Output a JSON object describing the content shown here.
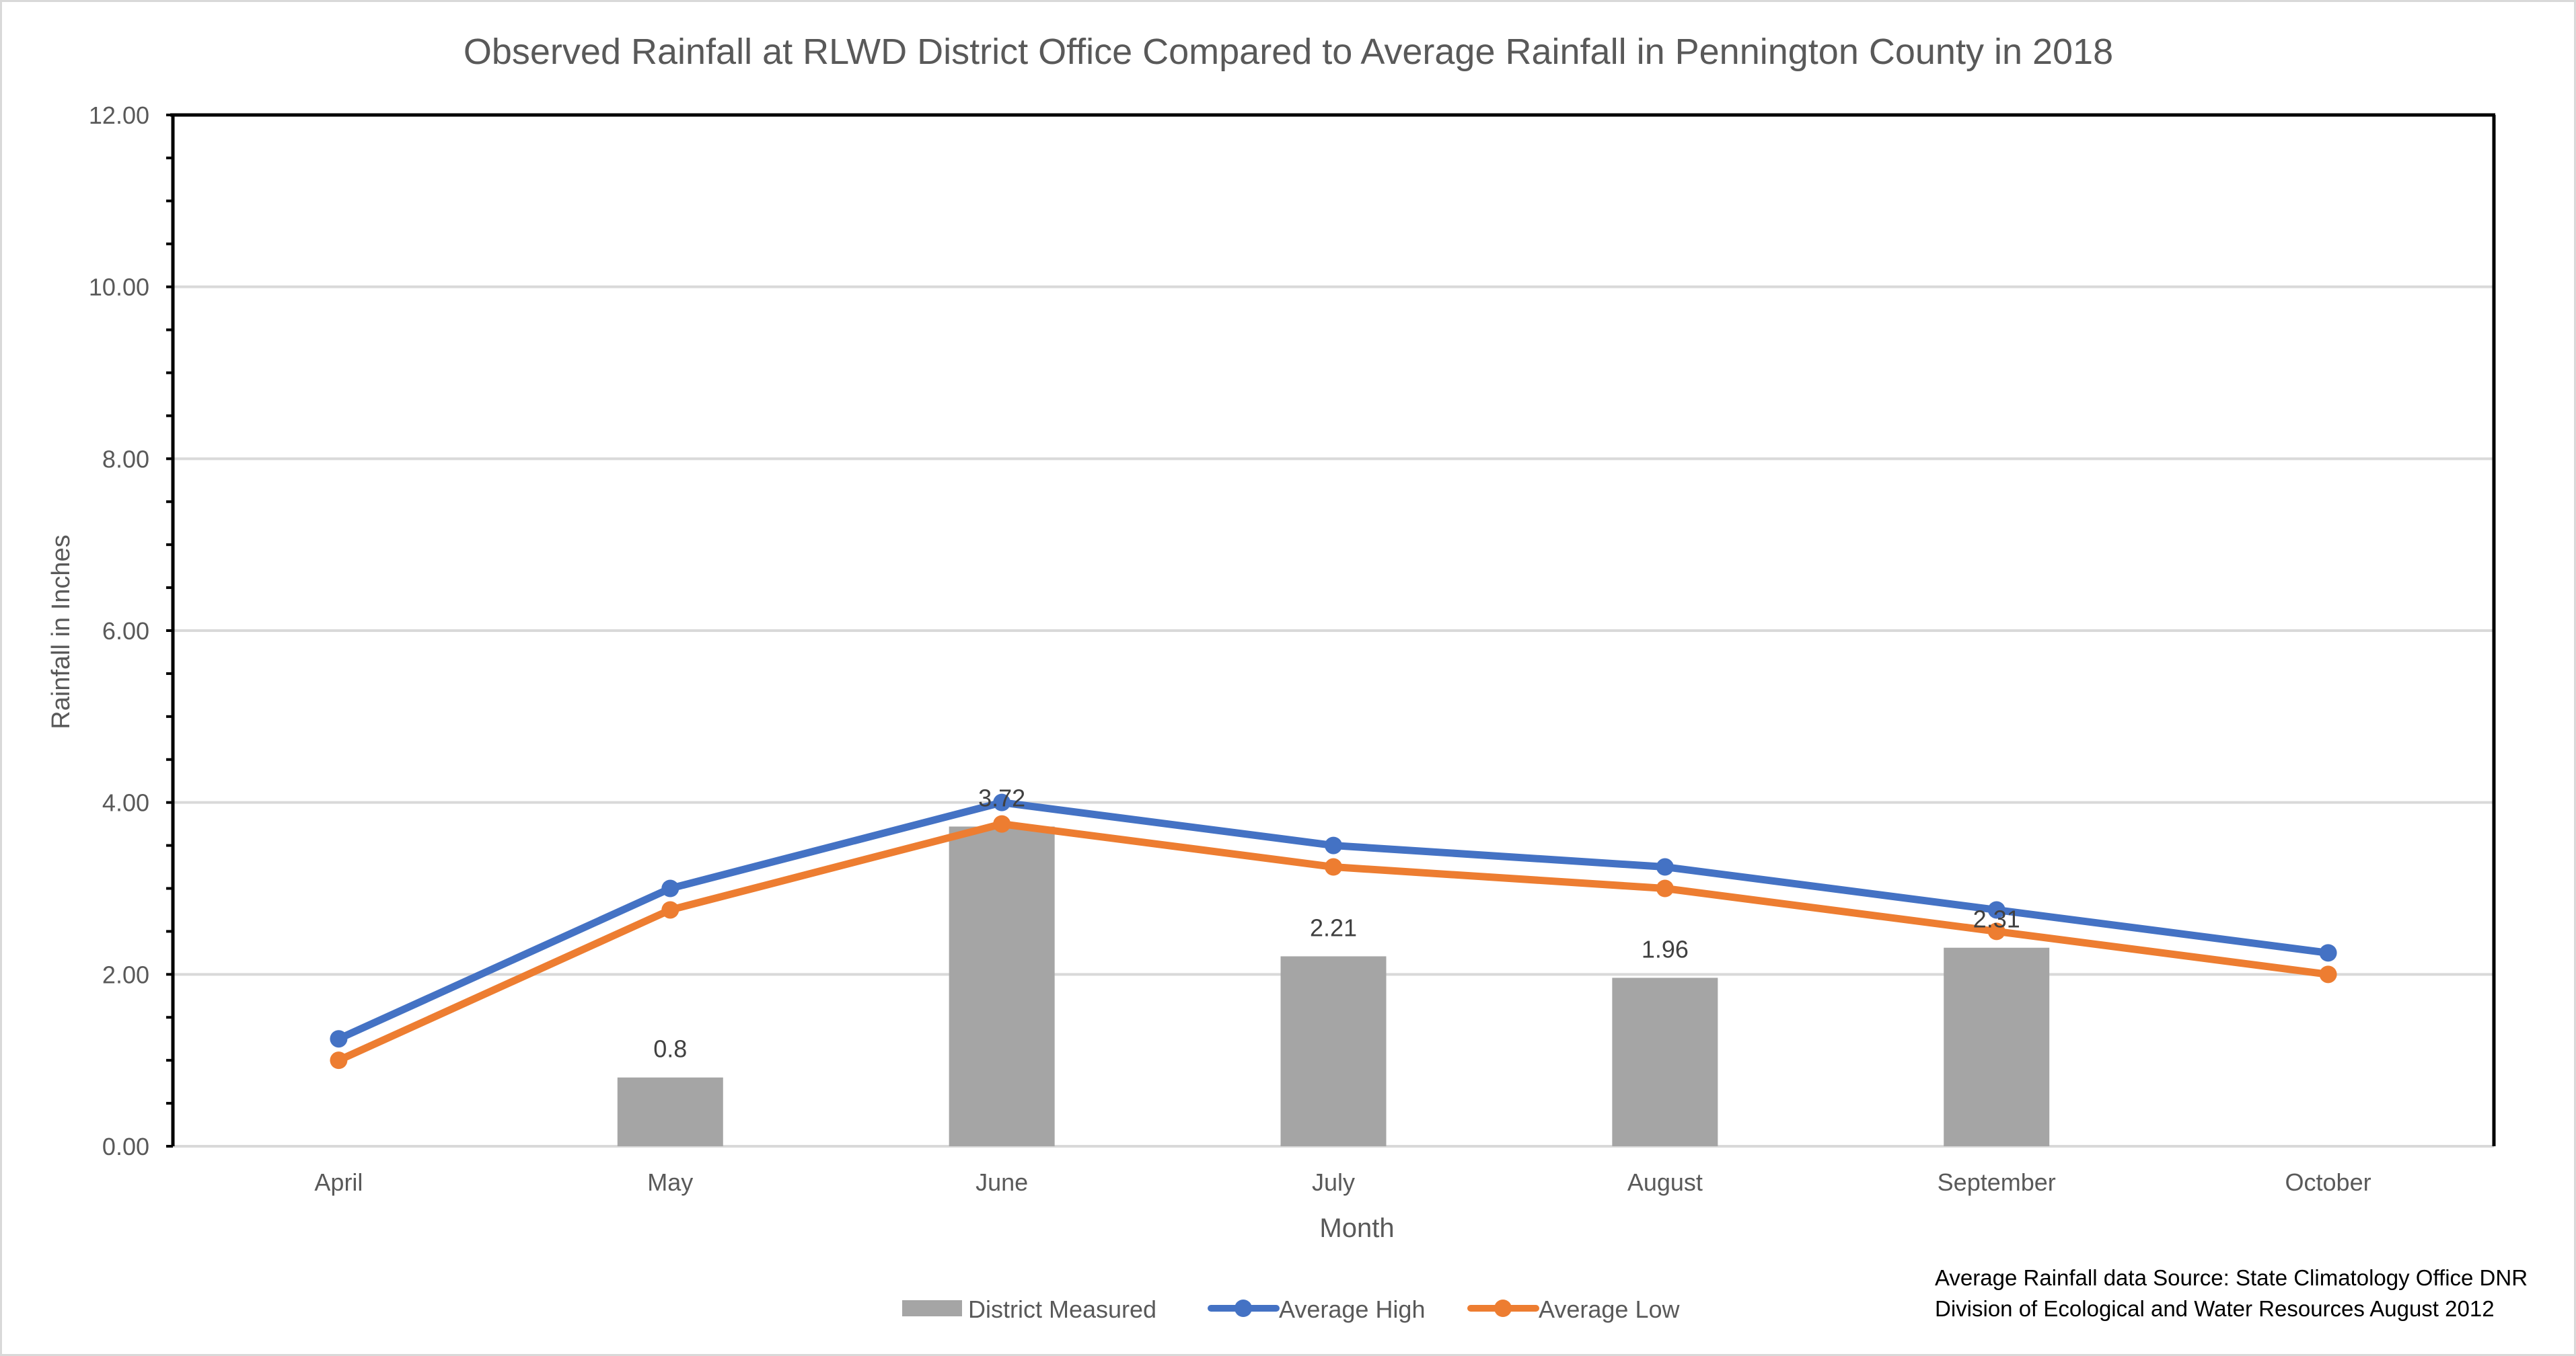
{
  "chart_data": {
    "type": "bar+line",
    "title": "Observed Rainfall at RLWD District Office Compared to Average Rainfall in Pennington County in 2018",
    "xlabel": "Month",
    "ylabel": "Rainfall in Inches",
    "ylim": [
      0,
      12
    ],
    "y_major_ticks": [
      0,
      2,
      4,
      6,
      8,
      10,
      12
    ],
    "y_tick_labels": [
      "0.00",
      "2.00",
      "4.00",
      "6.00",
      "8.00",
      "10.00",
      "12.00"
    ],
    "y_minor_step": 0.5,
    "grid": true,
    "categories": [
      "April",
      "May",
      "June",
      "July",
      "August",
      "September",
      "October"
    ],
    "series": [
      {
        "name": "District Measured",
        "kind": "bar",
        "color": "#a5a5a5",
        "values": [
          null,
          0.8,
          3.72,
          2.21,
          1.96,
          2.31,
          null
        ],
        "data_labels": [
          "",
          "0.8",
          "3.72",
          "2.21",
          "1.96",
          "2.31",
          ""
        ]
      },
      {
        "name": "Average High",
        "kind": "line",
        "color": "#4472c4",
        "values": [
          1.25,
          3.0,
          4.0,
          3.5,
          3.25,
          2.75,
          2.25
        ]
      },
      {
        "name": "Average Low",
        "kind": "line",
        "color": "#ed7d31",
        "values": [
          1.0,
          2.75,
          3.75,
          3.25,
          3.0,
          2.5,
          2.0
        ]
      }
    ],
    "legend": {
      "placement": "bottom-center",
      "entries": [
        "District Measured",
        "Average High",
        "Average Low"
      ]
    },
    "annotation": {
      "lines": [
        "Average Rainfall data Source: State Climatology Office DNR",
        "Division of Ecological and Water Resources August 2012"
      ],
      "placement": "bottom-right"
    }
  },
  "colors": {
    "text": "#595959",
    "dark_text": "#404040",
    "gridline": "#d9d9d9",
    "axis": "#000000"
  }
}
